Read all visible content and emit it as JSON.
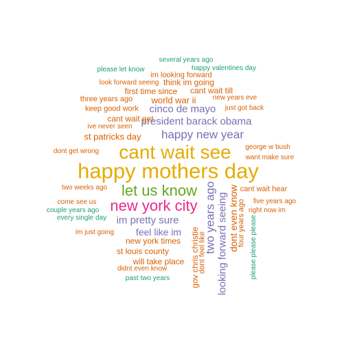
{
  "palette": {
    "teal": "#1b9e77",
    "orange": "#d95f02",
    "purple": "#7570b3",
    "pink": "#e7298a",
    "green": "#66a61e",
    "gold": "#e6ab02"
  },
  "words": [
    {
      "text": "happy mothers day",
      "color": "gold",
      "vertical": false
    },
    {
      "text": "cant wait see",
      "color": "gold",
      "vertical": false
    },
    {
      "text": "new york city",
      "color": "pink",
      "vertical": false
    },
    {
      "text": "let us know",
      "color": "green",
      "vertical": false
    },
    {
      "text": "happy new year",
      "color": "purple",
      "vertical": false
    },
    {
      "text": "president barack obama",
      "color": "purple",
      "vertical": false
    },
    {
      "text": "cinco de mayo",
      "color": "purple",
      "vertical": false
    },
    {
      "text": "im pretty sure",
      "color": "purple",
      "vertical": false
    },
    {
      "text": "feel like im",
      "color": "purple",
      "vertical": false
    },
    {
      "text": "two years ago",
      "color": "purple",
      "vertical": true
    },
    {
      "text": "looking forward seeing",
      "color": "purple",
      "vertical": true
    },
    {
      "text": "dont even know",
      "color": "orange",
      "vertical": true
    },
    {
      "text": "st patricks day",
      "color": "orange",
      "vertical": false
    },
    {
      "text": "world war ii",
      "color": "orange",
      "vertical": false
    },
    {
      "text": "cant wait get",
      "color": "orange",
      "vertical": false
    },
    {
      "text": "new york times",
      "color": "orange",
      "vertical": false
    },
    {
      "text": "st louis county",
      "color": "orange",
      "vertical": false
    },
    {
      "text": "will take place",
      "color": "orange",
      "vertical": false
    },
    {
      "text": "first time since",
      "color": "orange",
      "vertical": false
    },
    {
      "text": "cant wait till",
      "color": "orange",
      "vertical": false
    },
    {
      "text": "several years ago",
      "color": "teal",
      "vertical": false
    },
    {
      "text": "please let know",
      "color": "teal",
      "vertical": false
    },
    {
      "text": "happy valentines day",
      "color": "teal",
      "vertical": false
    },
    {
      "text": "im looking forward",
      "color": "orange",
      "vertical": false
    },
    {
      "text": "look forward seeing",
      "color": "orange",
      "vertical": false
    },
    {
      "text": "think im going",
      "color": "orange",
      "vertical": false
    },
    {
      "text": "three years ago",
      "color": "orange",
      "vertical": false
    },
    {
      "text": "new years eve",
      "color": "orange",
      "vertical": false
    },
    {
      "text": "keep good work",
      "color": "orange",
      "vertical": false
    },
    {
      "text": "just got back",
      "color": "orange",
      "vertical": false
    },
    {
      "text": "ive never seen",
      "color": "orange",
      "vertical": false
    },
    {
      "text": "dont get wrong",
      "color": "orange",
      "vertical": false
    },
    {
      "text": "george w bush",
      "color": "orange",
      "vertical": false
    },
    {
      "text": "want make sure",
      "color": "orange",
      "vertical": false
    },
    {
      "text": "two weeks ago",
      "color": "orange",
      "vertical": false
    },
    {
      "text": "cant wait hear",
      "color": "orange",
      "vertical": false
    },
    {
      "text": "come see us",
      "color": "orange",
      "vertical": false
    },
    {
      "text": "five years ago",
      "color": "orange",
      "vertical": false
    },
    {
      "text": "couple years ago",
      "color": "teal",
      "vertical": false
    },
    {
      "text": "right now im",
      "color": "orange",
      "vertical": false
    },
    {
      "text": "every single day",
      "color": "teal",
      "vertical": false
    },
    {
      "text": "im just going",
      "color": "orange",
      "vertical": false
    },
    {
      "text": "didnt even know",
      "color": "orange",
      "vertical": false
    },
    {
      "text": "past two years",
      "color": "teal",
      "vertical": false
    },
    {
      "text": "gov chris christie",
      "color": "orange",
      "vertical": true
    },
    {
      "text": "dont feel like",
      "color": "orange",
      "vertical": true
    },
    {
      "text": "four years ago",
      "color": "orange",
      "vertical": true
    },
    {
      "text": "please please please",
      "color": "teal",
      "vertical": true
    }
  ]
}
